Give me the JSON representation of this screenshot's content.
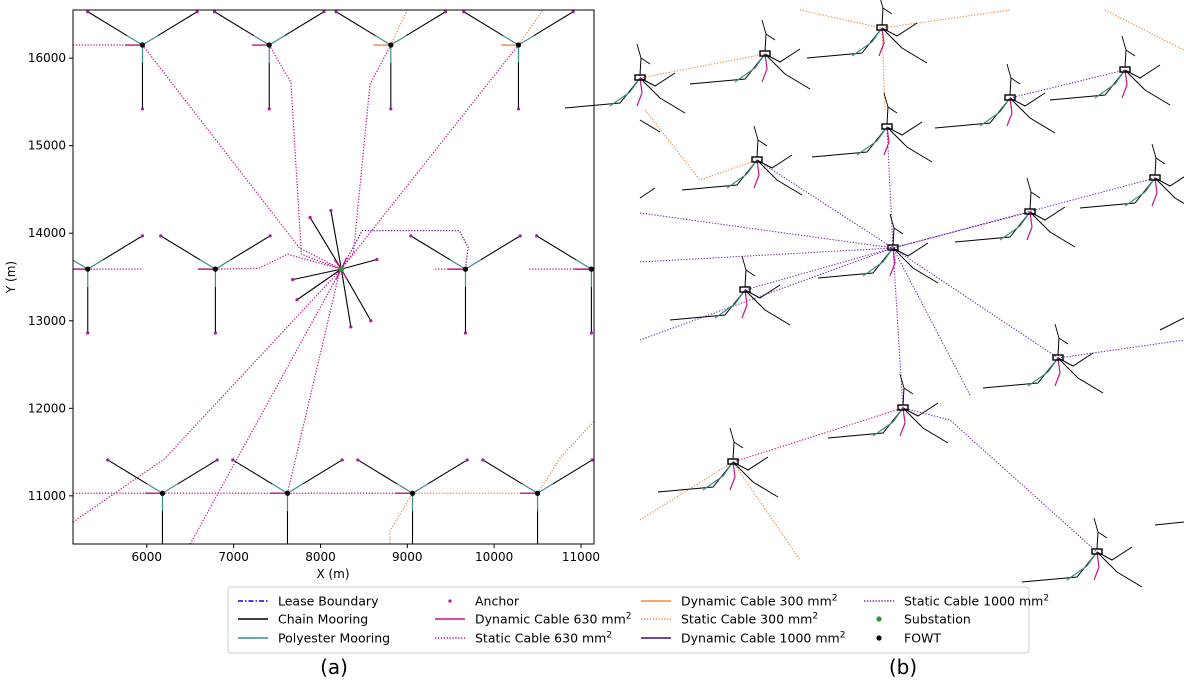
{
  "chart_data": {
    "type": "scatter",
    "xlabel": "X (m)",
    "ylabel": "Y (m)",
    "xlim": [
      5150,
      11150
    ],
    "ylim": [
      10450,
      16550
    ],
    "xticks": [
      6000,
      7000,
      8000,
      9000,
      10000,
      11000
    ],
    "yticks": [
      11000,
      12000,
      13000,
      14000,
      15000,
      16000
    ],
    "xtick_labels": [
      "6000",
      "7000",
      "8000",
      "9000",
      "10000",
      "11000"
    ],
    "ytick_labels": [
      "11000",
      "12000",
      "13000",
      "14000",
      "15000",
      "16000"
    ],
    "substation": [
      8240,
      13590
    ],
    "turbines": [
      [
        5950,
        16150
      ],
      [
        7410,
        16150
      ],
      [
        8810,
        16150
      ],
      [
        10280,
        16150
      ],
      [
        5320,
        13590
      ],
      [
        6790,
        13590
      ],
      [
        9670,
        13590
      ],
      [
        11120,
        13590
      ],
      [
        6180,
        11030
      ],
      [
        7620,
        11030
      ],
      [
        9060,
        11030
      ],
      [
        10500,
        11030
      ]
    ],
    "legend_entries": [
      {
        "label": "Lease Boundary",
        "color": "#0000ff",
        "style": "dashdot"
      },
      {
        "label": "Anchor",
        "color": "#b0169f",
        "style": "dot"
      },
      {
        "label": "Dynamic Cable 300 mm",
        "color": "#f0883a",
        "style": "solid",
        "sup": "2"
      },
      {
        "label": "Static Cable 1000 mm",
        "color": "#6a1aa8",
        "style": "dotted",
        "sup": "2"
      },
      {
        "label": "Chain Mooring",
        "color": "#000000",
        "style": "solid"
      },
      {
        "label": "Dynamic Cable 630 mm",
        "color": "#c4148a",
        "style": "solid",
        "sup": "2"
      },
      {
        "label": "Static Cable 300 mm",
        "color": "#f0883a",
        "style": "dotted",
        "sup": "2"
      },
      {
        "label": "Substation",
        "color": "#2a9a2a",
        "style": "marker"
      },
      {
        "label": "Polyester Mooring",
        "color": "#3a8f88",
        "style": "solid"
      },
      {
        "label": "Static Cable 630 mm",
        "color": "#c4148a",
        "style": "dotted",
        "sup": "2"
      },
      {
        "label": "Dynamic Cable 1000 mm",
        "color": "#3a0a80",
        "style": "solid",
        "sup": "2"
      },
      {
        "label": "FOWT",
        "color": "#000000",
        "style": "marker"
      }
    ]
  },
  "panels": {
    "a": "(a)",
    "b": "(b)"
  }
}
